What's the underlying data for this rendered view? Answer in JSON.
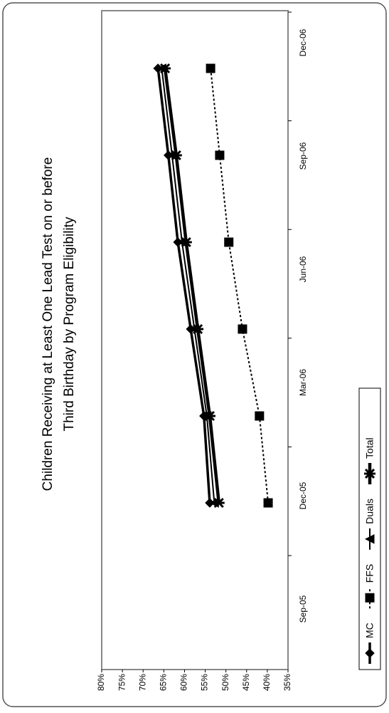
{
  "chart_data": {
    "type": "line",
    "title": [
      "Children Receiving at Least One Lead Test on or before",
      "Third Birthday by Program Eligibility"
    ],
    "categories": [
      "Sep-05",
      "Dec-05",
      "Mar-06",
      "Jun-06",
      "Sep-06",
      "Dec-06"
    ],
    "series": [
      {
        "name": "MC",
        "color": "#000000",
        "marker": "diamond",
        "values": [
          53.9,
          55.3,
          58.5,
          61.6,
          63.9,
          66.4
        ]
      },
      {
        "name": "FFS",
        "color": "#000000",
        "marker": "square",
        "dashed": true,
        "values": [
          39.8,
          41.9,
          46.0,
          49.3,
          51.5,
          53.7
        ]
      },
      {
        "name": "Duals",
        "color": "#000000",
        "marker": "triangle",
        "values": [
          52.8,
          54.6,
          57.6,
          60.6,
          63.0,
          65.5
        ]
      },
      {
        "name": "Total",
        "color": "#000000",
        "marker": "star",
        "values": [
          51.7,
          53.9,
          56.8,
          59.6,
          62.0,
          64.7
        ]
      }
    ],
    "ylim": [
      35,
      80
    ],
    "yticks": [
      {
        "value": 80,
        "label": "80%"
      },
      {
        "value": 75,
        "label": "75%"
      },
      {
        "value": 70,
        "label": "70%"
      },
      {
        "value": 65,
        "label": "65%"
      },
      {
        "value": 60,
        "label": "60%"
      },
      {
        "value": 55,
        "label": "55%"
      },
      {
        "value": 50,
        "label": "50%"
      },
      {
        "value": 45,
        "label": "45%"
      },
      {
        "value": 40,
        "label": "40%"
      },
      {
        "value": 35,
        "label": "35%"
      }
    ],
    "grid": false,
    "legend": "bottom"
  }
}
